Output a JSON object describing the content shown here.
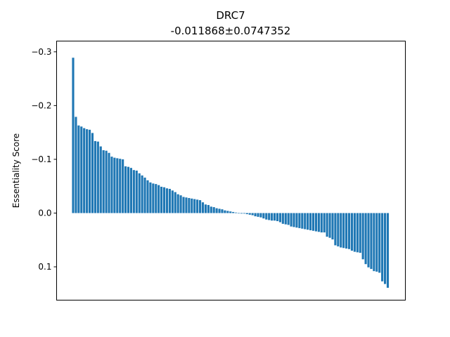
{
  "chart_data": {
    "type": "bar",
    "title": "DRC7",
    "subtitle": "-0.011868±0.0747352",
    "xlabel": "",
    "ylabel": "Essentiality Score",
    "ylim": [
      0.162,
      -0.32
    ],
    "y_inverted": true,
    "yticks": [
      -0.3,
      -0.2,
      -0.1,
      0.0,
      0.1
    ],
    "ytick_labels": [
      "−0.3",
      "−0.2",
      "−0.1",
      "0.0",
      "0.1"
    ],
    "xticks_visible": false,
    "grid": false,
    "bar_color": "#1f77b4",
    "values": [
      -0.289,
      -0.179,
      -0.163,
      -0.161,
      -0.158,
      -0.156,
      -0.155,
      -0.149,
      -0.134,
      -0.133,
      -0.124,
      -0.117,
      -0.116,
      -0.112,
      -0.105,
      -0.103,
      -0.102,
      -0.101,
      -0.1,
      -0.087,
      -0.086,
      -0.084,
      -0.08,
      -0.079,
      -0.074,
      -0.07,
      -0.066,
      -0.061,
      -0.057,
      -0.055,
      -0.054,
      -0.052,
      -0.049,
      -0.048,
      -0.046,
      -0.045,
      -0.042,
      -0.039,
      -0.035,
      -0.033,
      -0.03,
      -0.029,
      -0.028,
      -0.027,
      -0.026,
      -0.025,
      -0.024,
      -0.02,
      -0.016,
      -0.015,
      -0.012,
      -0.011,
      -0.009,
      -0.008,
      -0.007,
      -0.005,
      -0.004,
      -0.003,
      -0.002,
      -0.001,
      0.0,
      0.001,
      0.001,
      0.002,
      0.003,
      0.004,
      0.006,
      0.007,
      0.008,
      0.01,
      0.012,
      0.013,
      0.014,
      0.014,
      0.015,
      0.017,
      0.02,
      0.021,
      0.022,
      0.025,
      0.026,
      0.027,
      0.028,
      0.029,
      0.03,
      0.031,
      0.032,
      0.033,
      0.034,
      0.035,
      0.036,
      0.036,
      0.044,
      0.046,
      0.049,
      0.06,
      0.062,
      0.064,
      0.065,
      0.066,
      0.067,
      0.07,
      0.072,
      0.073,
      0.074,
      0.086,
      0.095,
      0.101,
      0.104,
      0.108,
      0.109,
      0.111,
      0.127,
      0.132,
      0.139
    ]
  }
}
